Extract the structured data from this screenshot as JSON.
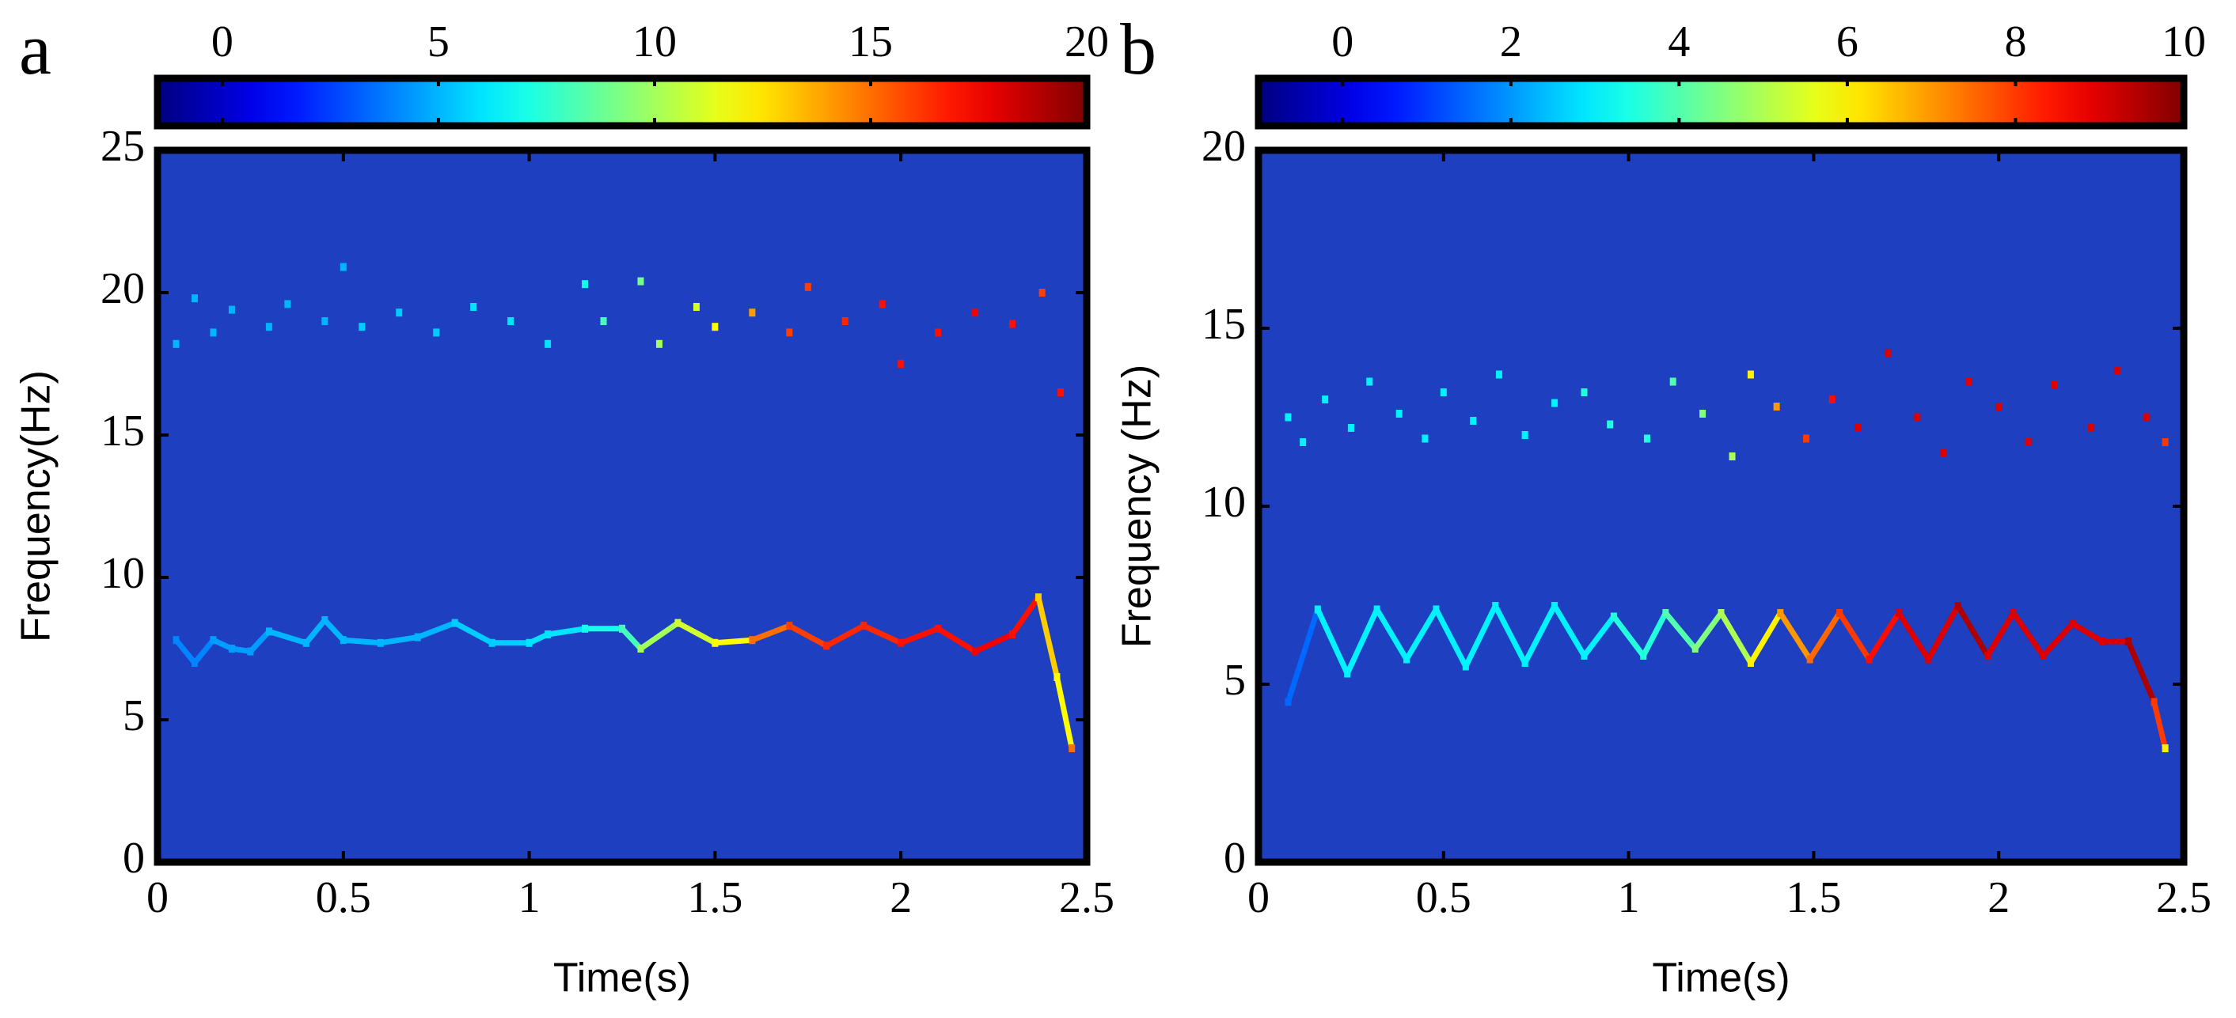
{
  "chart_data": [
    {
      "type": "scatter",
      "panel_label": "a",
      "x_label": "Time(s)",
      "y_label": "Frequency(Hz)",
      "xlim": [
        0,
        2.5
      ],
      "xticks": [
        0,
        0.5,
        1,
        1.5,
        2,
        2.5
      ],
      "ylim": [
        0,
        25
      ],
      "yticks": [
        0,
        5,
        10,
        15,
        20,
        25
      ],
      "background": "#1e3fbf",
      "colormap": "jet",
      "colorbar": {
        "clim": [
          -1.5,
          20
        ],
        "ticks": [
          0,
          5,
          10,
          15,
          20
        ]
      },
      "series": [
        {
          "connect": true,
          "x": [
            0.05,
            0.1,
            0.15,
            0.2,
            0.25,
            0.3,
            0.4,
            0.45,
            0.5,
            0.6,
            0.7,
            0.8,
            0.9,
            1.0,
            1.05,
            1.15,
            1.25,
            1.3,
            1.4,
            1.5,
            1.6,
            1.7,
            1.8,
            1.9,
            2.0,
            2.1,
            2.2,
            2.3,
            2.37,
            2.42,
            2.46
          ],
          "y": [
            7.8,
            7.0,
            7.8,
            7.5,
            7.4,
            8.1,
            7.7,
            8.5,
            7.8,
            7.7,
            7.9,
            8.4,
            7.7,
            7.7,
            8.0,
            8.2,
            8.2,
            7.5,
            8.4,
            7.7,
            7.8,
            8.3,
            7.6,
            8.3,
            7.7,
            8.2,
            7.4,
            8.0,
            9.3,
            6.5,
            4.0
          ],
          "values": [
            4,
            4,
            4.5,
            4.5,
            4.5,
            5,
            5,
            5,
            5,
            5,
            5,
            5.5,
            5.5,
            6,
            6,
            7,
            8,
            10,
            11,
            12,
            15,
            16,
            16.5,
            16.5,
            17,
            17,
            17.5,
            17,
            13,
            12,
            15
          ]
        },
        {
          "connect": false,
          "x": [
            0.05,
            0.1,
            0.15,
            0.2,
            0.3,
            0.35,
            0.45,
            0.5,
            0.55,
            0.65,
            0.75,
            0.85,
            0.95,
            1.05,
            1.15,
            1.2,
            1.3,
            1.35,
            1.45,
            1.5,
            1.6,
            1.7,
            1.75,
            1.85,
            1.95,
            2.0,
            2.1,
            2.2,
            2.3,
            2.38,
            2.43
          ],
          "y": [
            18.2,
            19.8,
            18.6,
            19.4,
            18.8,
            19.6,
            19.0,
            20.9,
            18.8,
            19.3,
            18.6,
            19.5,
            19.0,
            18.2,
            20.3,
            19.0,
            20.4,
            18.2,
            19.5,
            18.8,
            19.3,
            18.6,
            20.2,
            19.0,
            19.6,
            17.5,
            18.6,
            19.3,
            18.9,
            20.0,
            16.5
          ],
          "values": [
            5,
            5,
            5,
            5,
            5,
            5,
            5,
            5,
            5.5,
            5.5,
            5.5,
            6,
            6,
            6,
            7,
            8,
            9,
            10,
            11,
            12,
            14,
            16,
            16,
            16.5,
            17,
            17,
            17,
            17.5,
            17,
            16,
            17
          ]
        }
      ]
    },
    {
      "type": "scatter",
      "panel_label": "b",
      "x_label": "Time(s)",
      "y_label": "Frequency (Hz)",
      "xlim": [
        0,
        2.5
      ],
      "xticks": [
        0,
        0.5,
        1,
        1.5,
        2,
        2.5
      ],
      "ylim": [
        0,
        20
      ],
      "yticks": [
        0,
        5,
        10,
        15,
        20
      ],
      "background": "#1e3fbf",
      "colormap": "jet",
      "colorbar": {
        "clim": [
          -1,
          10
        ],
        "ticks": [
          0,
          2,
          4,
          6,
          8,
          10
        ]
      },
      "series": [
        {
          "connect": true,
          "x": [
            0.08,
            0.16,
            0.24,
            0.32,
            0.4,
            0.48,
            0.56,
            0.64,
            0.72,
            0.8,
            0.88,
            0.96,
            1.04,
            1.1,
            1.18,
            1.25,
            1.33,
            1.41,
            1.49,
            1.57,
            1.65,
            1.73,
            1.81,
            1.89,
            1.97,
            2.04,
            2.12,
            2.2,
            2.28,
            2.35,
            2.42,
            2.45
          ],
          "y": [
            4.5,
            7.1,
            5.3,
            7.1,
            5.7,
            7.1,
            5.5,
            7.2,
            5.6,
            7.2,
            5.8,
            6.9,
            5.8,
            7.0,
            6.0,
            7.0,
            5.6,
            7.0,
            5.7,
            7.0,
            5.7,
            7.0,
            5.7,
            7.2,
            5.8,
            7.0,
            5.8,
            6.7,
            6.2,
            6.2,
            4.5,
            3.2
          ],
          "values": [
            1.5,
            3,
            3,
            3,
            3,
            3,
            3,
            3,
            3,
            3,
            3,
            3.5,
            3.5,
            4,
            4.5,
            5,
            6,
            7,
            7.5,
            8,
            8.5,
            9,
            9,
            9.5,
            9,
            9,
            9,
            9,
            9,
            9.5,
            8,
            6
          ]
        },
        {
          "connect": false,
          "x": [
            0.08,
            0.12,
            0.18,
            0.25,
            0.3,
            0.38,
            0.45,
            0.5,
            0.58,
            0.65,
            0.72,
            0.8,
            0.88,
            0.95,
            1.05,
            1.12,
            1.2,
            1.28,
            1.33,
            1.4,
            1.48,
            1.55,
            1.62,
            1.7,
            1.78,
            1.85,
            1.92,
            2.0,
            2.08,
            2.15,
            2.25,
            2.32,
            2.4,
            2.45
          ],
          "y": [
            12.5,
            11.8,
            13.0,
            12.2,
            13.5,
            12.6,
            11.9,
            13.2,
            12.4,
            13.7,
            12.0,
            12.9,
            13.2,
            12.3,
            11.9,
            13.5,
            12.6,
            11.4,
            13.7,
            12.8,
            11.9,
            13.0,
            12.2,
            14.3,
            12.5,
            11.5,
            13.5,
            12.8,
            11.8,
            13.4,
            12.2,
            13.8,
            12.5,
            11.8
          ],
          "values": [
            3,
            3,
            3,
            3,
            3,
            3,
            3,
            3,
            3,
            3,
            3,
            3,
            3.5,
            3.5,
            3.5,
            4,
            4.5,
            5,
            6,
            7,
            8,
            8.5,
            9,
            9,
            9,
            9,
            9,
            9,
            9,
            9,
            9,
            9,
            9,
            8
          ]
        }
      ]
    }
  ]
}
